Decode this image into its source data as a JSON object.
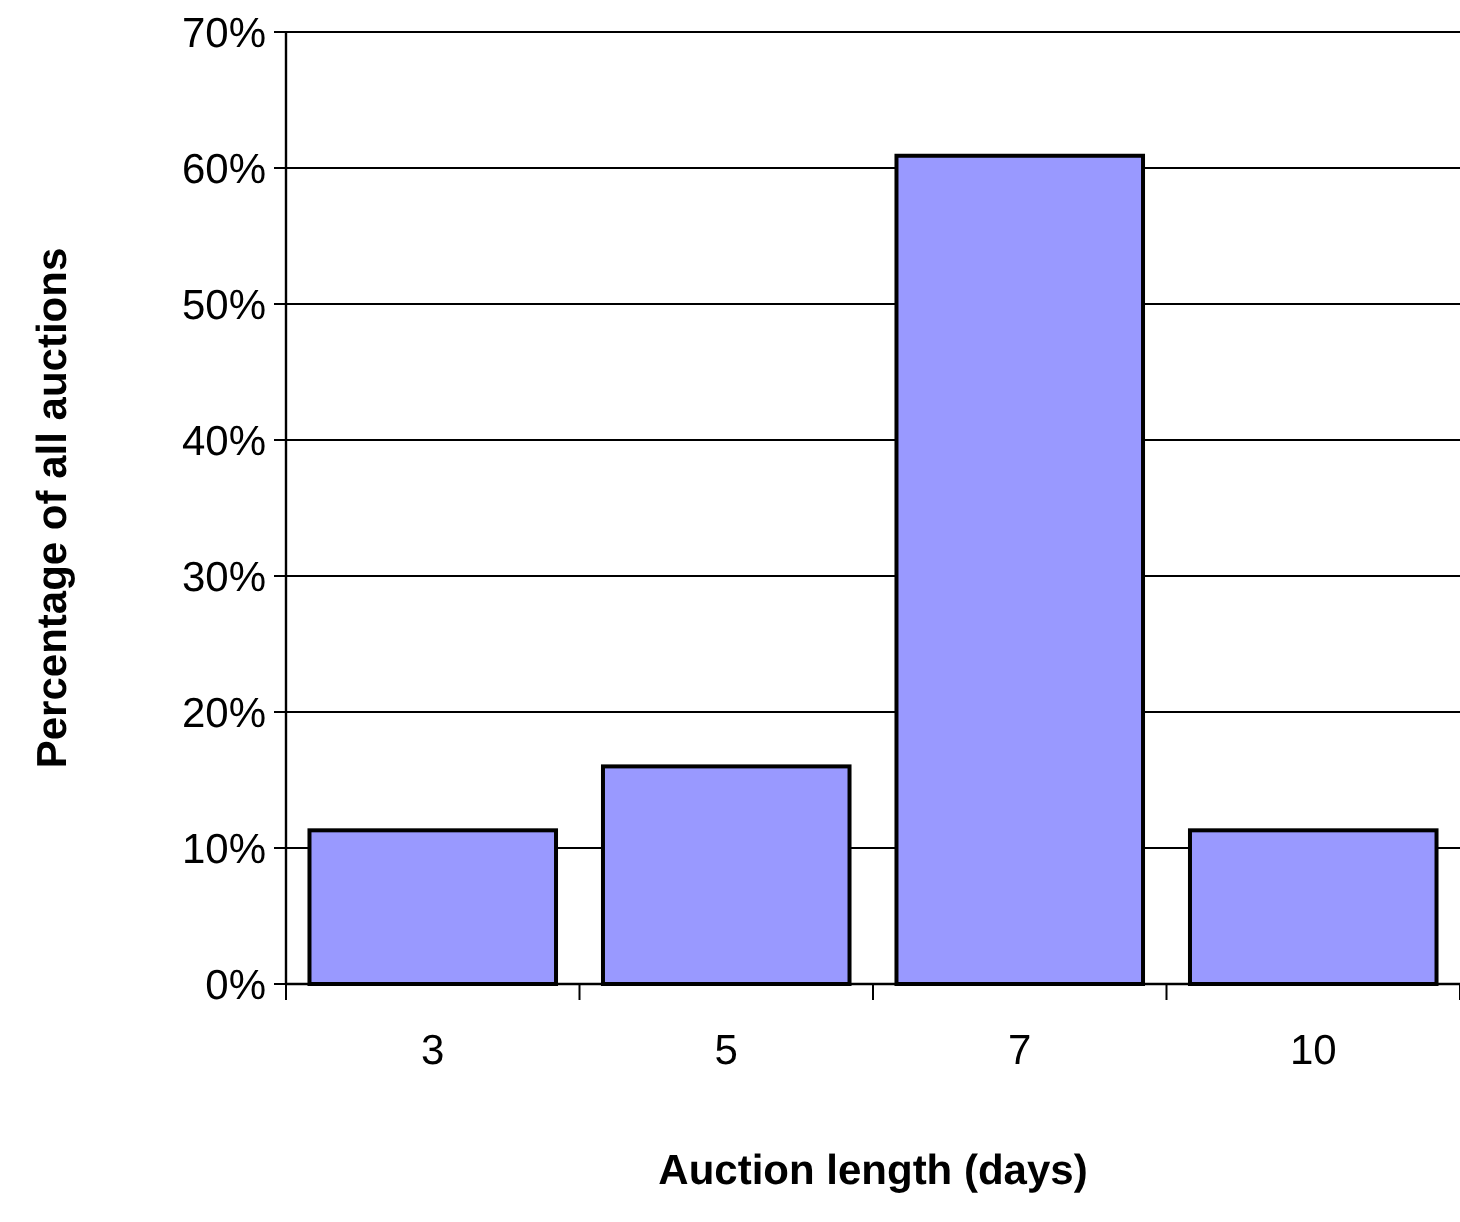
{
  "chart_data": {
    "type": "bar",
    "xlabel": "Auction length (days)",
    "ylabel": "Percentage of all auctions",
    "categories": [
      "3",
      "5",
      "7",
      "10"
    ],
    "values": [
      11.3,
      16.0,
      60.9,
      11.3
    ],
    "color": "#9999ff",
    "ylim": [
      0,
      70
    ],
    "yticks": [
      {
        "value": 0,
        "label": "0%"
      },
      {
        "value": 10,
        "label": "10%"
      },
      {
        "value": 20,
        "label": "20%"
      },
      {
        "value": 30,
        "label": "30%"
      },
      {
        "value": 40,
        "label": "40%"
      },
      {
        "value": 50,
        "label": "50%"
      },
      {
        "value": 60,
        "label": "60%"
      },
      {
        "value": 70,
        "label": "70%"
      }
    ],
    "grid": "y"
  }
}
